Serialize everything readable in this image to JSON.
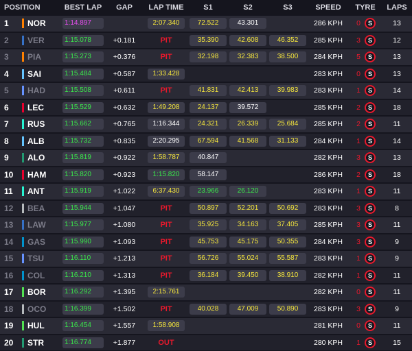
{
  "headers": [
    "POSITION",
    "BEST LAP",
    "GAP",
    "LAP TIME",
    "S1",
    "S2",
    "S3",
    "SPEED",
    "TYRE",
    "LAPS"
  ],
  "rows": [
    {
      "pos": "1",
      "driver": "NOR",
      "team_color": "#ff8000",
      "dim": false,
      "best": "1:14.897",
      "best_color": "purple",
      "gap": "",
      "lap": "2:07.340",
      "lap_type": "box",
      "lap_color": "yellow",
      "s1": "72.522",
      "s1c": "yellow",
      "s2": "43.301",
      "s2c": "white",
      "s3": "",
      "s3c": "",
      "speed": "286 KPH",
      "tyre_age": "0",
      "tyre": "S",
      "laps": "13"
    },
    {
      "pos": "2",
      "driver": "VER",
      "team_color": "#3671c6",
      "dim": true,
      "best": "1:15.078",
      "best_color": "green",
      "gap": "+0.181",
      "lap": "PIT",
      "lap_type": "pit",
      "lap_color": "",
      "s1": "35.390",
      "s1c": "yellow",
      "s2": "42.608",
      "s2c": "yellow",
      "s3": "46.352",
      "s3c": "yellow",
      "speed": "285 KPH",
      "tyre_age": "3",
      "tyre": "S",
      "laps": "12"
    },
    {
      "pos": "3",
      "driver": "PIA",
      "team_color": "#ff8000",
      "dim": true,
      "best": "1:15.273",
      "best_color": "green",
      "gap": "+0.376",
      "lap": "PIT",
      "lap_type": "pit",
      "lap_color": "",
      "s1": "32.198",
      "s1c": "yellow",
      "s2": "32.383",
      "s2c": "yellow",
      "s3": "38.500",
      "s3c": "yellow",
      "speed": "284 KPH",
      "tyre_age": "5",
      "tyre": "S",
      "laps": "13"
    },
    {
      "pos": "4",
      "driver": "SAI",
      "team_color": "#64c4ff",
      "dim": false,
      "best": "1:15.484",
      "best_color": "green",
      "gap": "+0.587",
      "lap": "1:33.428",
      "lap_type": "box",
      "lap_color": "yellow",
      "s1": "",
      "s1c": "",
      "s2": "",
      "s2c": "",
      "s3": "",
      "s3c": "",
      "speed": "283 KPH",
      "tyre_age": "0",
      "tyre": "S",
      "laps": "13"
    },
    {
      "pos": "5",
      "driver": "HAD",
      "team_color": "#6692ff",
      "dim": true,
      "best": "1:15.508",
      "best_color": "green",
      "gap": "+0.611",
      "lap": "PIT",
      "lap_type": "pit",
      "lap_color": "",
      "s1": "41.831",
      "s1c": "yellow",
      "s2": "42.413",
      "s2c": "yellow",
      "s3": "39.983",
      "s3c": "yellow",
      "speed": "283 KPH",
      "tyre_age": "1",
      "tyre": "S",
      "laps": "14"
    },
    {
      "pos": "6",
      "driver": "LEC",
      "team_color": "#e8002d",
      "dim": false,
      "best": "1:15.529",
      "best_color": "green",
      "gap": "+0.632",
      "lap": "1:49.208",
      "lap_type": "box",
      "lap_color": "yellow",
      "s1": "24.137",
      "s1c": "yellow",
      "s2": "39.572",
      "s2c": "white",
      "s3": "",
      "s3c": "",
      "speed": "285 KPH",
      "tyre_age": "2",
      "tyre": "S",
      "laps": "18"
    },
    {
      "pos": "7",
      "driver": "RUS",
      "team_color": "#27f4d2",
      "dim": false,
      "best": "1:15.662",
      "best_color": "green",
      "gap": "+0.765",
      "lap": "1:16.344",
      "lap_type": "box",
      "lap_color": "white",
      "s1": "24.321",
      "s1c": "yellow",
      "s2": "26.339",
      "s2c": "yellow",
      "s3": "25.684",
      "s3c": "yellow",
      "speed": "285 KPH",
      "tyre_age": "2",
      "tyre": "S",
      "laps": "11"
    },
    {
      "pos": "8",
      "driver": "ALB",
      "team_color": "#64c4ff",
      "dim": false,
      "best": "1:15.732",
      "best_color": "green",
      "gap": "+0.835",
      "lap": "2:20.295",
      "lap_type": "box",
      "lap_color": "white",
      "s1": "67.594",
      "s1c": "yellow",
      "s2": "41.568",
      "s2c": "yellow",
      "s3": "31.133",
      "s3c": "yellow",
      "speed": "284 KPH",
      "tyre_age": "1",
      "tyre": "S",
      "laps": "14"
    },
    {
      "pos": "9",
      "driver": "ALO",
      "team_color": "#229971",
      "dim": false,
      "best": "1:15.819",
      "best_color": "green",
      "gap": "+0.922",
      "lap": "1:58.787",
      "lap_type": "box",
      "lap_color": "yellow",
      "s1": "40.847",
      "s1c": "white",
      "s2": "",
      "s2c": "",
      "s3": "",
      "s3c": "",
      "speed": "282 KPH",
      "tyre_age": "3",
      "tyre": "S",
      "laps": "13"
    },
    {
      "pos": "10",
      "driver": "HAM",
      "team_color": "#e8002d",
      "dim": false,
      "best": "1:15.820",
      "best_color": "green",
      "gap": "+0.923",
      "lap": "1:15.820",
      "lap_type": "box",
      "lap_color": "green",
      "s1": "58.147",
      "s1c": "white",
      "s2": "",
      "s2c": "",
      "s3": "",
      "s3c": "",
      "speed": "286 KPH",
      "tyre_age": "2",
      "tyre": "S",
      "laps": "18"
    },
    {
      "pos": "11",
      "driver": "ANT",
      "team_color": "#27f4d2",
      "dim": false,
      "best": "1:15.919",
      "best_color": "green",
      "gap": "+1.022",
      "lap": "6:37.430",
      "lap_type": "box",
      "lap_color": "yellow",
      "s1": "23.966",
      "s1c": "green",
      "s2": "26.120",
      "s2c": "green",
      "s3": "",
      "s3c": "",
      "speed": "283 KPH",
      "tyre_age": "1",
      "tyre": "S",
      "laps": "11"
    },
    {
      "pos": "12",
      "driver": "BEA",
      "team_color": "#b6babd",
      "dim": true,
      "best": "1:15.944",
      "best_color": "green",
      "gap": "+1.047",
      "lap": "PIT",
      "lap_type": "pit",
      "lap_color": "",
      "s1": "50.897",
      "s1c": "yellow",
      "s2": "52.201",
      "s2c": "yellow",
      "s3": "50.692",
      "s3c": "yellow",
      "speed": "283 KPH",
      "tyre_age": "3",
      "tyre": "S",
      "laps": "8"
    },
    {
      "pos": "13",
      "driver": "LAW",
      "team_color": "#3671c6",
      "dim": true,
      "best": "1:15.977",
      "best_color": "green",
      "gap": "+1.080",
      "lap": "PIT",
      "lap_type": "pit",
      "lap_color": "",
      "s1": "35.925",
      "s1c": "yellow",
      "s2": "34.163",
      "s2c": "yellow",
      "s3": "37.405",
      "s3c": "yellow",
      "speed": "285 KPH",
      "tyre_age": "3",
      "tyre": "S",
      "laps": "11"
    },
    {
      "pos": "14",
      "driver": "GAS",
      "team_color": "#0093cc",
      "dim": true,
      "best": "1:15.990",
      "best_color": "green",
      "gap": "+1.093",
      "lap": "PIT",
      "lap_type": "pit",
      "lap_color": "",
      "s1": "45.753",
      "s1c": "yellow",
      "s2": "45.175",
      "s2c": "yellow",
      "s3": "50.355",
      "s3c": "yellow",
      "speed": "284 KPH",
      "tyre_age": "3",
      "tyre": "S",
      "laps": "9"
    },
    {
      "pos": "15",
      "driver": "TSU",
      "team_color": "#6692ff",
      "dim": true,
      "best": "1:16.110",
      "best_color": "green",
      "gap": "+1.213",
      "lap": "PIT",
      "lap_type": "pit",
      "lap_color": "",
      "s1": "56.726",
      "s1c": "yellow",
      "s2": "55.024",
      "s2c": "yellow",
      "s3": "55.587",
      "s3c": "yellow",
      "speed": "283 KPH",
      "tyre_age": "1",
      "tyre": "S",
      "laps": "9"
    },
    {
      "pos": "16",
      "driver": "COL",
      "team_color": "#0093cc",
      "dim": true,
      "best": "1:16.210",
      "best_color": "green",
      "gap": "+1.313",
      "lap": "PIT",
      "lap_type": "pit",
      "lap_color": "",
      "s1": "36.184",
      "s1c": "yellow",
      "s2": "39.450",
      "s2c": "yellow",
      "s3": "38.910",
      "s3c": "yellow",
      "speed": "282 KPH",
      "tyre_age": "1",
      "tyre": "S",
      "laps": "11"
    },
    {
      "pos": "17",
      "driver": "BOR",
      "team_color": "#52e252",
      "dim": false,
      "best": "1:16.292",
      "best_color": "green",
      "gap": "+1.395",
      "lap": "2:15.761",
      "lap_type": "box",
      "lap_color": "yellow",
      "s1": "",
      "s1c": "",
      "s2": "",
      "s2c": "",
      "s3": "",
      "s3c": "",
      "speed": "282 KPH",
      "tyre_age": "0",
      "tyre": "S",
      "laps": "11"
    },
    {
      "pos": "18",
      "driver": "OCO",
      "team_color": "#b6babd",
      "dim": true,
      "best": "1:16.399",
      "best_color": "green",
      "gap": "+1.502",
      "lap": "PIT",
      "lap_type": "pit",
      "lap_color": "",
      "s1": "40.028",
      "s1c": "yellow",
      "s2": "47.009",
      "s2c": "yellow",
      "s3": "50.890",
      "s3c": "yellow",
      "speed": "283 KPH",
      "tyre_age": "3",
      "tyre": "S",
      "laps": "9"
    },
    {
      "pos": "19",
      "driver": "HUL",
      "team_color": "#52e252",
      "dim": false,
      "best": "1:16.454",
      "best_color": "green",
      "gap": "+1.557",
      "lap": "1:58.908",
      "lap_type": "box",
      "lap_color": "yellow",
      "s1": "",
      "s1c": "",
      "s2": "",
      "s2c": "",
      "s3": "",
      "s3c": "",
      "speed": "281 KPH",
      "tyre_age": "0",
      "tyre": "S",
      "laps": "11"
    },
    {
      "pos": "20",
      "driver": "STR",
      "team_color": "#229971",
      "dim": false,
      "best": "1:16.774",
      "best_color": "green",
      "gap": "+1.877",
      "lap": "OUT",
      "lap_type": "pit",
      "lap_color": "",
      "s1": "",
      "s1c": "",
      "s2": "",
      "s2c": "",
      "s3": "",
      "s3c": "",
      "speed": "280 KPH",
      "tyre_age": "1",
      "tyre": "S",
      "laps": "15"
    }
  ]
}
